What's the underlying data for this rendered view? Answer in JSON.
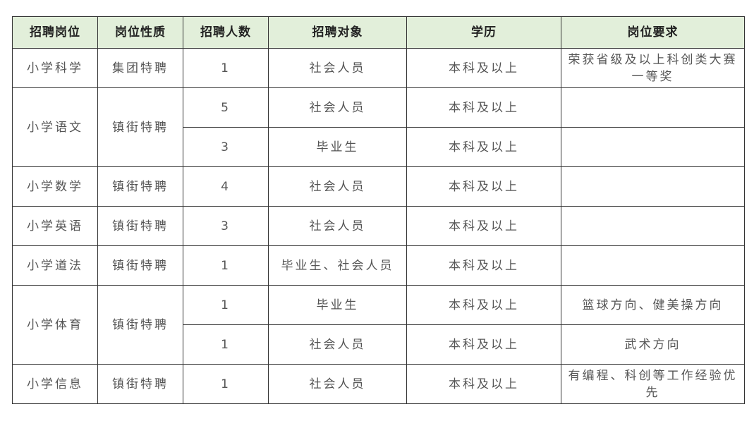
{
  "table": {
    "headers": [
      "招聘岗位",
      "岗位性质",
      "招聘人数",
      "招聘对象",
      "学历",
      "岗位要求"
    ],
    "header_bg": "#e2efda",
    "rows": [
      {
        "post": "小学科学",
        "nature": "集团特聘",
        "subrows": [
          {
            "count": "1",
            "target": "社会人员",
            "edu": "本科及以上",
            "req": "荣获省级及以上科创类大赛一等奖"
          }
        ]
      },
      {
        "post": "小学语文",
        "nature": "镇街特聘",
        "subrows": [
          {
            "count": "5",
            "target": "社会人员",
            "edu": "本科及以上",
            "req": ""
          },
          {
            "count": "3",
            "target": "毕业生",
            "edu": "本科及以上",
            "req": ""
          }
        ]
      },
      {
        "post": "小学数学",
        "nature": "镇街特聘",
        "subrows": [
          {
            "count": "4",
            "target": "社会人员",
            "edu": "本科及以上",
            "req": ""
          }
        ]
      },
      {
        "post": "小学英语",
        "nature": "镇街特聘",
        "subrows": [
          {
            "count": "3",
            "target": "社会人员",
            "edu": "本科及以上",
            "req": ""
          }
        ]
      },
      {
        "post": "小学道法",
        "nature": "镇街特聘",
        "subrows": [
          {
            "count": "1",
            "target": "毕业生、社会人员",
            "edu": "本科及以上",
            "req": ""
          }
        ]
      },
      {
        "post": "小学体育",
        "nature": "镇街特聘",
        "subrows": [
          {
            "count": "1",
            "target": "毕业生",
            "edu": "本科及以上",
            "req": "篮球方向、健美操方向"
          },
          {
            "count": "1",
            "target": "社会人员",
            "edu": "本科及以上",
            "req": "武术方向"
          }
        ]
      },
      {
        "post": "小学信息",
        "nature": "镇街特聘",
        "subrows": [
          {
            "count": "1",
            "target": "社会人员",
            "edu": "本科及以上",
            "req": "有编程、科创等工作经验优先"
          }
        ]
      }
    ]
  }
}
